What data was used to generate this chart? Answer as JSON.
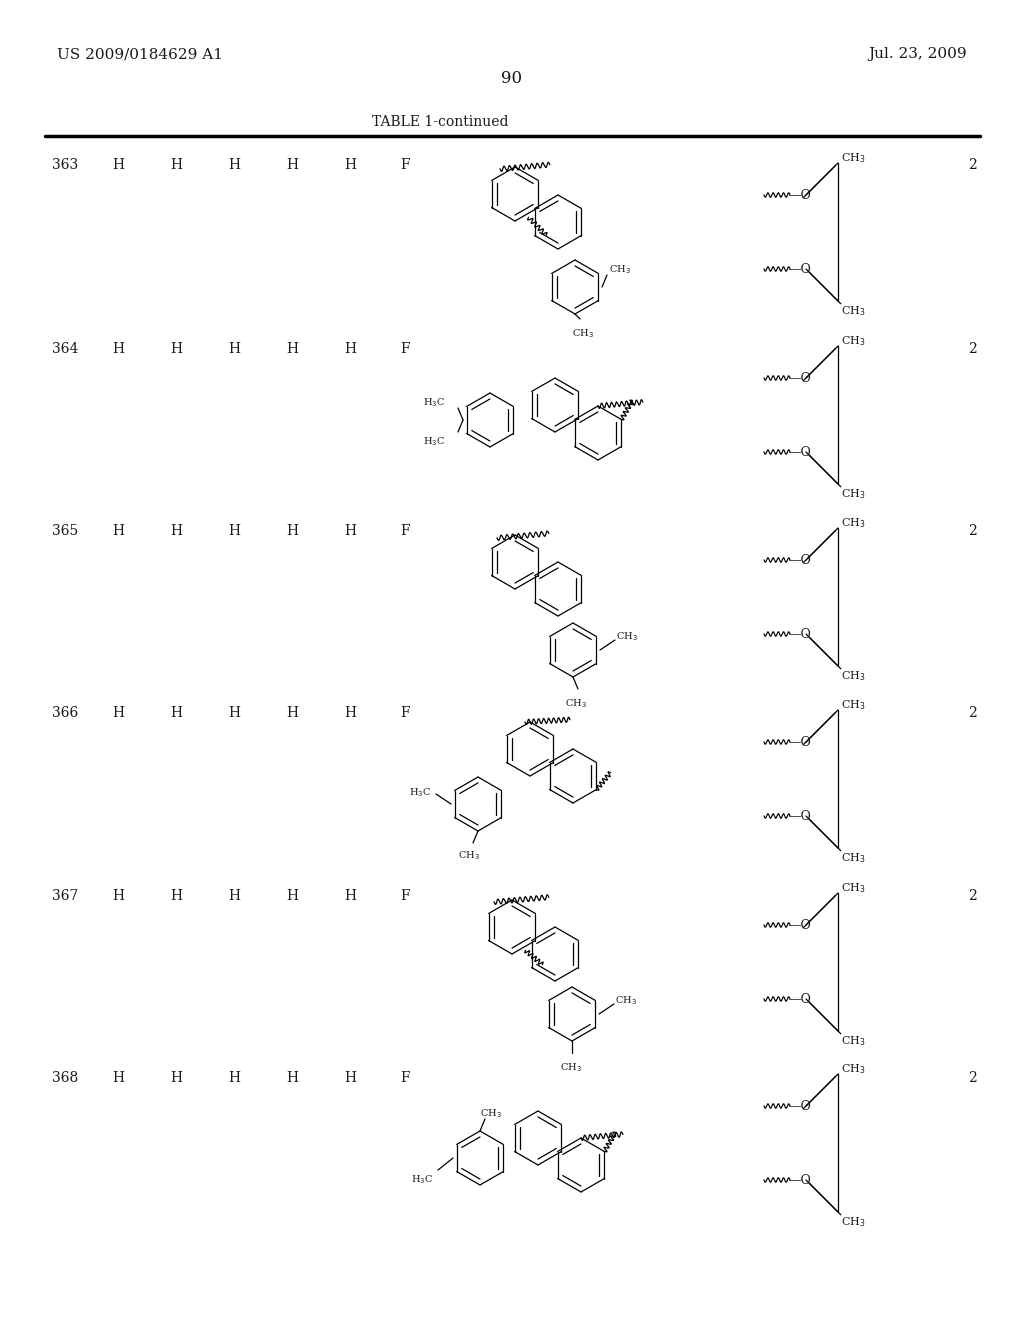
{
  "title_left": "US 2009/0184629 A1",
  "title_right": "Jul. 23, 2009",
  "page_number": "90",
  "table_title": "TABLE 1-continued",
  "row_nums": [
    363,
    364,
    365,
    366,
    367,
    368
  ],
  "col_labels": [
    "H",
    "H",
    "H",
    "H",
    "H",
    "F"
  ],
  "n_val": "2",
  "bg_color": "#ffffff",
  "line_color": "#000000",
  "text_color": "#1a1a1a"
}
